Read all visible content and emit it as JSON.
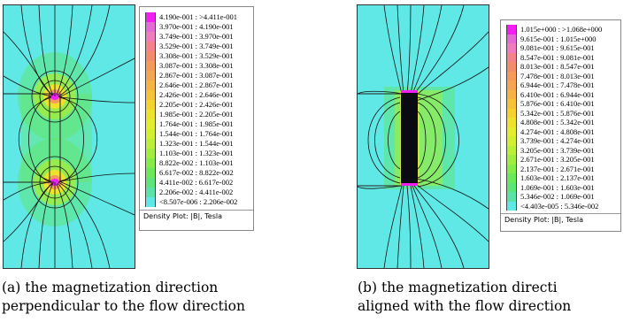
{
  "figure_a": {
    "caption_line1": "(a)  the  magnetization  direction",
    "caption_line2": "perpendicular to the flow direction",
    "legend_footer": "Density Plot: |B|, Tesla",
    "legend": [
      {
        "label": "4.190e-001 : >4.411e-001",
        "color": "#f21ef2"
      },
      {
        "label": "3.970e-001 : 4.190e-001",
        "color": "#e46ad8"
      },
      {
        "label": "3.749e-001 : 3.970e-001",
        "color": "#f07cc0"
      },
      {
        "label": "3.529e-001 : 3.749e-001",
        "color": "#f5828a"
      },
      {
        "label": "3.308e-001 : 3.529e-001",
        "color": "#f38c6a"
      },
      {
        "label": "3.087e-001 : 3.308e-001",
        "color": "#f59a5a"
      },
      {
        "label": "2.867e-001 : 3.087e-001",
        "color": "#f5a652"
      },
      {
        "label": "2.646e-001 : 2.867e-001",
        "color": "#f6b444"
      },
      {
        "label": "2.426e-001 : 2.646e-001",
        "color": "#f6c236"
      },
      {
        "label": "2.205e-001 : 2.426e-001",
        "color": "#f3d32c"
      },
      {
        "label": "1.985e-001 : 2.205e-001",
        "color": "#eee22a"
      },
      {
        "label": "1.764e-001 : 1.985e-001",
        "color": "#e5ee2c"
      },
      {
        "label": "1.544e-001 : 1.764e-001",
        "color": "#d3f030"
      },
      {
        "label": "1.323e-001 : 1.544e-001",
        "color": "#bcef38"
      },
      {
        "label": "1.103e-001 : 1.323e-001",
        "color": "#a2ee40"
      },
      {
        "label": "8.822e-002 : 1.103e-001",
        "color": "#86ec4a"
      },
      {
        "label": "6.617e-002 : 8.822e-002",
        "color": "#6ce95a"
      },
      {
        "label": "4.411e-002 : 6.617e-002",
        "color": "#5ee57a"
      },
      {
        "label": "2.206e-002 : 4.411e-002",
        "color": "#5ae2a8"
      },
      {
        "label": "<8.507e-006 : 2.206e-002",
        "color": "#5fe8e6"
      }
    ]
  },
  "figure_b": {
    "caption_line1": "(b)  the  magnetization  directi",
    "caption_line2": "aligned with the flow direction",
    "legend_footer": "Density Plot: |B|, Tesla",
    "legend": [
      {
        "label": "1.015e+000 : >1.068e+000",
        "color": "#f21ef2"
      },
      {
        "label": "9.615e-001 : 1.015e+000",
        "color": "#e46ad8"
      },
      {
        "label": "9.081e-001 : 9.615e-001",
        "color": "#f07cc0"
      },
      {
        "label": "8.547e-001 : 9.081e-001",
        "color": "#f5828a"
      },
      {
        "label": "8.013e-001 : 8.547e-001",
        "color": "#f38c6a"
      },
      {
        "label": "7.478e-001 : 8.013e-001",
        "color": "#f59a5a"
      },
      {
        "label": "6.944e-001 : 7.478e-001",
        "color": "#f5a652"
      },
      {
        "label": "6.410e-001 : 6.944e-001",
        "color": "#f6b444"
      },
      {
        "label": "5.876e-001 : 6.410e-001",
        "color": "#f6c236"
      },
      {
        "label": "5.342e-001 : 5.876e-001",
        "color": "#f3d32c"
      },
      {
        "label": "4.808e-001 : 5.342e-001",
        "color": "#eee22a"
      },
      {
        "label": "4.274e-001 : 4.808e-001",
        "color": "#e5ee2c"
      },
      {
        "label": "3.739e-001 : 4.274e-001",
        "color": "#d3f030"
      },
      {
        "label": "3.205e-001 : 3.739e-001",
        "color": "#bcef38"
      },
      {
        "label": "2.671e-001 : 3.205e-001",
        "color": "#a2ee40"
      },
      {
        "label": "2.137e-001 : 2.671e-001",
        "color": "#86ec4a"
      },
      {
        "label": "1.603e-001 : 2.137e-001",
        "color": "#6ce95a"
      },
      {
        "label": "1.069e-001 : 1.603e-001",
        "color": "#5ee57a"
      },
      {
        "label": "5.346e-002 : 1.069e-001",
        "color": "#5ae2a8"
      },
      {
        "label": "<4.403e-005 : 5.346e-002",
        "color": "#5fe8e6"
      }
    ]
  }
}
